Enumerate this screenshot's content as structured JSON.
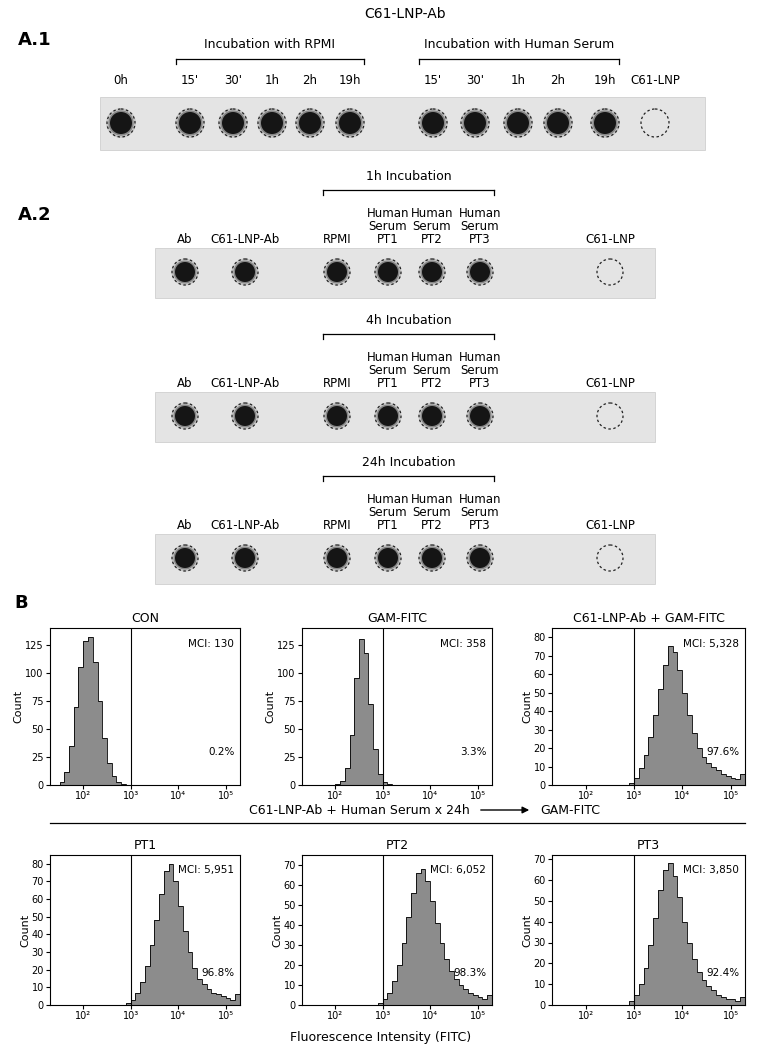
{
  "blots": [
    {
      "label": "A.1",
      "title": "C61-LNP-Ab",
      "strips": [
        {
          "lanes": [
            {
              "label": "0h",
              "spot": true
            },
            {
              "group": "Incubation with RPMI",
              "lanes": [
                {
                  "label": "15'",
                  "spot": true
                },
                {
                  "label": "30'",
                  "spot": true
                },
                {
                  "label": "1h",
                  "spot": true
                },
                {
                  "label": "2h",
                  "spot": true
                },
                {
                  "label": "19h",
                  "spot": true
                }
              ]
            },
            {
              "group": "Incubation with Human Serum",
              "lanes": [
                {
                  "label": "15'",
                  "spot": true
                },
                {
                  "label": "30'",
                  "spot": true
                },
                {
                  "label": "1h",
                  "spot": true
                },
                {
                  "label": "2h",
                  "spot": true
                },
                {
                  "label": "19h",
                  "spot": true
                }
              ]
            },
            {
              "label": "C61-LNP",
              "spot": false
            }
          ]
        }
      ]
    },
    {
      "label": "A.2",
      "strips": [
        {
          "lanes": [
            {
              "label": "Ab",
              "spot": true
            },
            {
              "label": "C61-LNP-Ab",
              "spot": true
            },
            {
              "group": "1h Incubation",
              "lanes": [
                {
                  "label": "RPMI",
                  "spot": true
                },
                {
                  "label": "Human\nSerum\nPT1",
                  "spot": true
                },
                {
                  "label": "Human\nSerum\nPT2",
                  "spot": true
                },
                {
                  "label": "Human\nSerum\nPT3",
                  "spot": true
                }
              ]
            },
            {
              "label": "C61-LNP",
              "spot": false
            }
          ]
        },
        {
          "lanes": [
            {
              "label": "Ab",
              "spot": true
            },
            {
              "label": "C61-LNP-Ab",
              "spot": true
            },
            {
              "group": "4h Incubation",
              "lanes": [
                {
                  "label": "RPMI",
                  "spot": true
                },
                {
                  "label": "Human\nSerum\nPT1",
                  "spot": true
                },
                {
                  "label": "Human\nSerum\nPT2",
                  "spot": true
                },
                {
                  "label": "Human\nSerum\nPT3",
                  "spot": true
                }
              ]
            },
            {
              "label": "C61-LNP",
              "spot": false
            }
          ]
        },
        {
          "lanes": [
            {
              "label": "Ab",
              "spot": true
            },
            {
              "label": "C61-LNP-Ab",
              "spot": true
            },
            {
              "group": "24h Incubation",
              "lanes": [
                {
                  "label": "RPMI",
                  "spot": true
                },
                {
                  "label": "Human\nSerum\nPT1",
                  "spot": true
                },
                {
                  "label": "Human\nSerum\nPT2",
                  "spot": true
                },
                {
                  "label": "Human\nSerum\nPT3",
                  "spot": true
                }
              ]
            },
            {
              "label": "C61-LNP",
              "spot": false
            }
          ]
        }
      ]
    }
  ],
  "flow": {
    "label": "B",
    "x_label": "Fluorescence Intensity (FITC)",
    "y_label": "Count",
    "treatment": "C61-LNP-Ab + Human Serum x 24h",
    "then": "GAM-FITC"
  },
  "chart_data": [
    {
      "type": "histogram",
      "title": "CON",
      "log": "x",
      "color": "#8c8c8c",
      "gate": 1000,
      "annotations": [
        "MCI: 130",
        "0.2%"
      ],
      "bins": [
        20,
        25,
        32,
        40,
        50,
        63,
        79,
        100,
        126,
        158,
        200,
        251,
        316,
        398,
        501,
        631,
        794,
        1000,
        1259,
        1585,
        1995,
        2512,
        3162,
        3981,
        5012,
        6310,
        7943,
        10000,
        12589,
        15849,
        19953,
        25119,
        31623,
        39811,
        50119,
        63096,
        79433,
        100000,
        125893,
        158489,
        199526
      ],
      "counts": [
        0,
        0,
        3,
        12,
        35,
        70,
        105,
        128,
        132,
        110,
        75,
        42,
        20,
        8,
        3,
        1,
        0,
        0,
        0,
        0,
        0,
        0,
        0,
        0,
        0,
        0,
        0,
        0,
        0,
        0,
        0,
        0,
        0,
        0,
        0,
        0,
        0,
        0,
        0,
        0
      ],
      "xlim": [
        20,
        199526
      ],
      "ylim": [
        0,
        140
      ],
      "xticks": [
        {
          "value": 100,
          "label": "10²"
        },
        {
          "value": 1000,
          "label": "10³"
        },
        {
          "value": 10000,
          "label": "10⁴"
        },
        {
          "value": 100000,
          "label": "10⁵"
        }
      ],
      "yticks": [
        0,
        25,
        50,
        75,
        100,
        125
      ]
    },
    {
      "type": "histogram",
      "title": "GAM-FITC",
      "log": "x",
      "color": "#8c8c8c",
      "gate": 1000,
      "annotations": [
        "MCI: 358",
        "3.3%"
      ],
      "bins": [
        20,
        25,
        32,
        40,
        50,
        63,
        79,
        100,
        126,
        158,
        200,
        251,
        316,
        398,
        501,
        631,
        794,
        1000,
        1259,
        1585,
        1995,
        2512,
        3162,
        3981,
        5012,
        6310,
        7943,
        10000,
        12589,
        15849,
        19953,
        25119,
        31623,
        39811,
        50119,
        63096,
        79433,
        100000,
        125893,
        158489,
        199526
      ],
      "counts": [
        0,
        0,
        0,
        0,
        0,
        0,
        0,
        1,
        4,
        15,
        45,
        95,
        130,
        118,
        72,
        32,
        10,
        3,
        1,
        0,
        0,
        0,
        0,
        0,
        0,
        0,
        0,
        0,
        0,
        0,
        0,
        0,
        0,
        0,
        0,
        0,
        0,
        0,
        0,
        0
      ],
      "xlim": [
        20,
        199526
      ],
      "ylim": [
        0,
        140
      ],
      "xticks": [
        {
          "value": 100,
          "label": "10²"
        },
        {
          "value": 1000,
          "label": "10³"
        },
        {
          "value": 10000,
          "label": "10⁴"
        },
        {
          "value": 100000,
          "label": "10⁵"
        }
      ],
      "yticks": [
        0,
        25,
        50,
        75,
        100,
        125
      ]
    },
    {
      "type": "histogram",
      "title": "C61-LNP-Ab + GAM-FITC",
      "log": "x",
      "color": "#8c8c8c",
      "gate": 1000,
      "annotations": [
        "MCI: 5,328",
        "97.6%"
      ],
      "bins": [
        20,
        25,
        32,
        40,
        50,
        63,
        79,
        100,
        126,
        158,
        200,
        251,
        316,
        398,
        501,
        631,
        794,
        1000,
        1259,
        1585,
        1995,
        2512,
        3162,
        3981,
        5012,
        6310,
        7943,
        10000,
        12589,
        15849,
        19953,
        25119,
        31623,
        39811,
        50119,
        63096,
        79433,
        100000,
        125893,
        158489,
        199526
      ],
      "counts": [
        0,
        0,
        0,
        0,
        0,
        0,
        0,
        0,
        0,
        0,
        0,
        0,
        0,
        0,
        0,
        0,
        1,
        4,
        9,
        16,
        26,
        38,
        52,
        65,
        75,
        72,
        62,
        50,
        38,
        28,
        20,
        15,
        12,
        10,
        8,
        6,
        5,
        4,
        3,
        6
      ],
      "xlim": [
        20,
        199526
      ],
      "ylim": [
        0,
        85
      ],
      "xticks": [
        {
          "value": 100,
          "label": "10²"
        },
        {
          "value": 1000,
          "label": "10³"
        },
        {
          "value": 10000,
          "label": "10⁴"
        },
        {
          "value": 100000,
          "label": "10⁵"
        }
      ],
      "yticks": [
        0,
        10,
        20,
        30,
        40,
        50,
        60,
        70,
        80
      ]
    },
    {
      "type": "histogram",
      "title": "PT1",
      "log": "x",
      "color": "#8c8c8c",
      "gate": 1000,
      "annotations": [
        "MCI: 5,951",
        "96.8%"
      ],
      "bins": [
        20,
        25,
        32,
        40,
        50,
        63,
        79,
        100,
        126,
        158,
        200,
        251,
        316,
        398,
        501,
        631,
        794,
        1000,
        1259,
        1585,
        1995,
        2512,
        3162,
        3981,
        5012,
        6310,
        7943,
        10000,
        12589,
        15849,
        19953,
        25119,
        31623,
        39811,
        50119,
        63096,
        79433,
        100000,
        125893,
        158489,
        199526
      ],
      "counts": [
        0,
        0,
        0,
        0,
        0,
        0,
        0,
        0,
        0,
        0,
        0,
        0,
        0,
        0,
        0,
        0,
        1,
        3,
        7,
        13,
        22,
        34,
        48,
        63,
        76,
        80,
        70,
        56,
        42,
        30,
        21,
        15,
        12,
        9,
        7,
        6,
        5,
        4,
        3,
        6
      ],
      "xlim": [
        20,
        199526
      ],
      "ylim": [
        0,
        85
      ],
      "xticks": [
        {
          "value": 100,
          "label": "10²"
        },
        {
          "value": 1000,
          "label": "10³"
        },
        {
          "value": 10000,
          "label": "10⁴"
        },
        {
          "value": 100000,
          "label": "10⁵"
        }
      ],
      "yticks": [
        0,
        10,
        20,
        30,
        40,
        50,
        60,
        70,
        80
      ]
    },
    {
      "type": "histogram",
      "title": "PT2",
      "log": "x",
      "color": "#8c8c8c",
      "gate": 1000,
      "annotations": [
        "MCI: 6,052",
        "98.3%"
      ],
      "bins": [
        20,
        25,
        32,
        40,
        50,
        63,
        79,
        100,
        126,
        158,
        200,
        251,
        316,
        398,
        501,
        631,
        794,
        1000,
        1259,
        1585,
        1995,
        2512,
        3162,
        3981,
        5012,
        6310,
        7943,
        10000,
        12589,
        15849,
        19953,
        25119,
        31623,
        39811,
        50119,
        63096,
        79433,
        100000,
        125893,
        158489,
        199526
      ],
      "counts": [
        0,
        0,
        0,
        0,
        0,
        0,
        0,
        0,
        0,
        0,
        0,
        0,
        0,
        0,
        0,
        0,
        1,
        3,
        6,
        12,
        20,
        31,
        44,
        56,
        66,
        68,
        62,
        52,
        41,
        31,
        23,
        17,
        13,
        10,
        8,
        6,
        5,
        4,
        3,
        5
      ],
      "xlim": [
        20,
        199526
      ],
      "ylim": [
        0,
        75
      ],
      "xticks": [
        {
          "value": 100,
          "label": "10²"
        },
        {
          "value": 1000,
          "label": "10³"
        },
        {
          "value": 10000,
          "label": "10⁴"
        },
        {
          "value": 100000,
          "label": "10⁵"
        }
      ],
      "yticks": [
        0,
        10,
        20,
        30,
        40,
        50,
        60,
        70
      ]
    },
    {
      "type": "histogram",
      "title": "PT3",
      "log": "x",
      "color": "#8c8c8c",
      "gate": 1000,
      "annotations": [
        "MCI: 3,850",
        "92.4%"
      ],
      "bins": [
        20,
        25,
        32,
        40,
        50,
        63,
        79,
        100,
        126,
        158,
        200,
        251,
        316,
        398,
        501,
        631,
        794,
        1000,
        1259,
        1585,
        1995,
        2512,
        3162,
        3981,
        5012,
        6310,
        7943,
        10000,
        12589,
        15849,
        19953,
        25119,
        31623,
        39811,
        50119,
        63096,
        79433,
        100000,
        125893,
        158489,
        199526
      ],
      "counts": [
        0,
        0,
        0,
        0,
        0,
        0,
        0,
        0,
        0,
        0,
        0,
        0,
        0,
        0,
        0,
        0,
        2,
        5,
        10,
        18,
        29,
        42,
        55,
        65,
        68,
        62,
        52,
        40,
        30,
        22,
        16,
        12,
        9,
        7,
        5,
        4,
        3,
        3,
        2,
        4
      ],
      "xlim": [
        20,
        199526
      ],
      "ylim": [
        0,
        72
      ],
      "xticks": [
        {
          "value": 100,
          "label": "10²"
        },
        {
          "value": 1000,
          "label": "10³"
        },
        {
          "value": 10000,
          "label": "10⁴"
        },
        {
          "value": 100000,
          "label": "10⁵"
        }
      ],
      "yticks": [
        0,
        10,
        20,
        30,
        40,
        50,
        60,
        70
      ]
    }
  ]
}
